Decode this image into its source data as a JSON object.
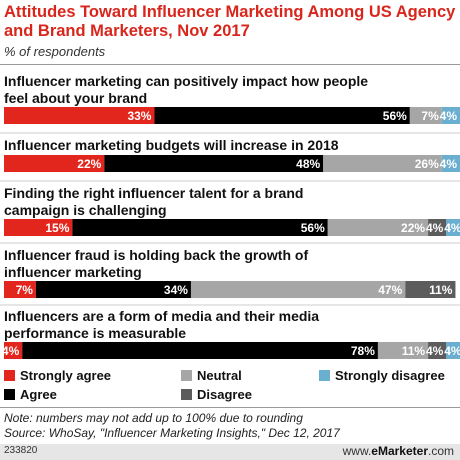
{
  "header": {
    "title": "Attitudes Toward Influencer Marketing Among US Agency and Brand Marketers, Nov 2017",
    "subtitle": "% of respondents"
  },
  "colors": {
    "strongly_agree": "#e3261d",
    "agree": "#000000",
    "neutral": "#a6a6a6",
    "disagree": "#5c5c5c",
    "strongly_disagree": "#6aafd0"
  },
  "legend": {
    "strongly_agree": "Strongly agree",
    "agree": "Agree",
    "neutral": "Neutral",
    "disagree": "Disagree",
    "strongly_disagree": "Strongly disagree"
  },
  "notes": {
    "note": "Note: numbers may not add up to 100% due to rounding",
    "source": "Source: WhoSay, \"Influencer Marketing Insights,\" Dec 12, 2017"
  },
  "footer": {
    "id": "233820",
    "site_prefix": "www.",
    "site_brand": "eMarketer",
    "site_suffix": ".com"
  },
  "chart_data": {
    "type": "bar",
    "stacked": true,
    "orientation": "horizontal",
    "categories": [
      "Influencer marketing can positively impact how people feel about your brand",
      "Influencer marketing budgets will increase in 2018",
      "Finding the right influencer talent for a brand campaign is challenging",
      "Influencer fraud is holding back the growth of influencer marketing",
      "Influencers are a form of media and their media performance is measurable"
    ],
    "category_lines": [
      [
        "Influencer marketing can positively impact how people",
        "feel about your brand"
      ],
      [
        "Influencer marketing budgets will increase in 2018"
      ],
      [
        "Finding the right influencer talent for a brand",
        "campaign is challenging"
      ],
      [
        "Influencer fraud is holding back the growth of",
        "influencer marketing"
      ],
      [
        "Influencers are a form of media and their media",
        "performance is measurable"
      ]
    ],
    "series": [
      {
        "name": "Strongly agree",
        "values": [
          33,
          22,
          15,
          7,
          4
        ]
      },
      {
        "name": "Agree",
        "values": [
          56,
          48,
          56,
          34,
          78
        ]
      },
      {
        "name": "Neutral",
        "values": [
          7,
          26,
          22,
          47,
          11
        ]
      },
      {
        "name": "Disagree",
        "values": [
          0,
          0,
          4,
          11,
          4
        ]
      },
      {
        "name": "Strongly disagree",
        "values": [
          4,
          4,
          4,
          0,
          4
        ]
      }
    ],
    "value_suffix": "%"
  }
}
